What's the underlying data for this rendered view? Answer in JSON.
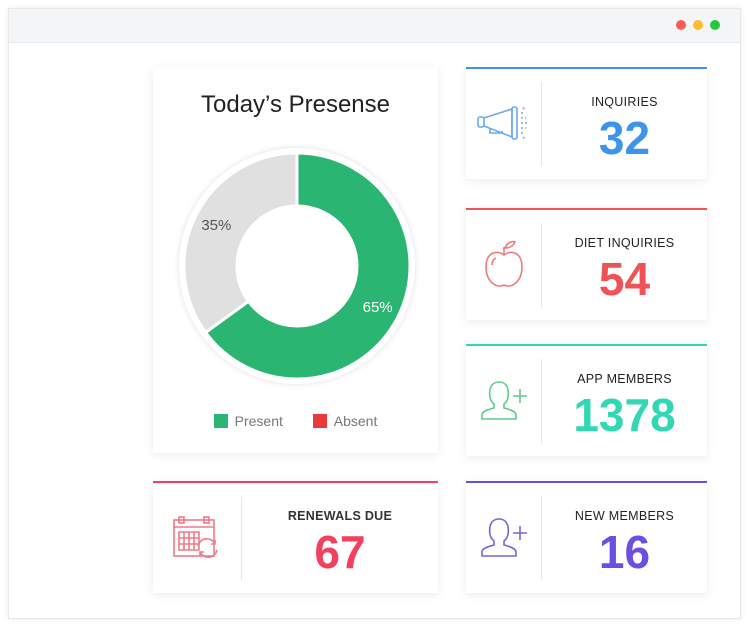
{
  "window": {
    "dots": [
      "#fd5a52",
      "#fdbc2e",
      "#27c840"
    ]
  },
  "chart_data": {
    "type": "pie",
    "title": "Today’s Presense",
    "categories": [
      "Present",
      "Absent"
    ],
    "values": [
      65,
      35
    ],
    "labels": [
      "65%",
      "35%"
    ],
    "colors": [
      "#2ab573",
      "#e0e0e0"
    ],
    "legend": [
      {
        "name": "Present",
        "color": "#2ab573"
      },
      {
        "name": "Absent",
        "color": "#e8393b"
      }
    ],
    "legend_position": "bottom",
    "donut": true
  },
  "stats": [
    {
      "label": "INQUIRIES",
      "value": "32",
      "color": "#3c95e8",
      "icon": "megaphone-icon"
    },
    {
      "label": "DIET INQUIRIES",
      "value": "54",
      "color": "#ef5356",
      "icon": "apple-icon"
    },
    {
      "label": "APP MEMBERS",
      "value": "1378",
      "color": "#30d8b3",
      "icon": "add-user-icon"
    },
    {
      "label": "RENEWALS DUE",
      "value": "67",
      "color": "#f3405f",
      "icon": "calendar-refresh-icon"
    },
    {
      "label": "NEW MEMBERS",
      "value": "16",
      "color": "#6b4fe0",
      "icon": "add-user-icon"
    }
  ]
}
